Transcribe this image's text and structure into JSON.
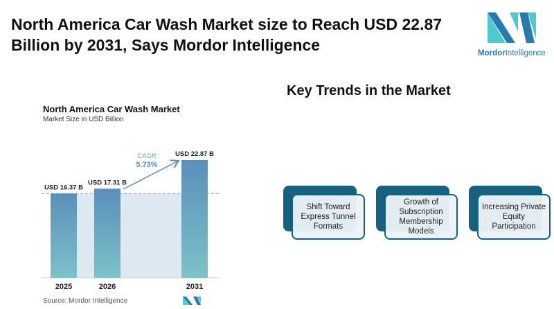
{
  "header": {
    "title": "North America Car Wash Market size to Reach USD 22.87 Billion by 2031, Says Mordor Intelligence"
  },
  "logo": {
    "name": "Mordor Intelligence",
    "word1": "Mordor",
    "word2": "Intelligence"
  },
  "chart_data": {
    "type": "bar",
    "title": "North America Car Wash Market",
    "subtitle": "Market Size in USD Billion",
    "categories": [
      "2025",
      "2026",
      "2031"
    ],
    "values": [
      16.37,
      17.31,
      22.87
    ],
    "data_labels": [
      "USD 16.37 B",
      "USD 17.31 B",
      "USD 22.87 B"
    ],
    "annotation": {
      "label": "CAGR",
      "value": "5.73%"
    },
    "ylim": [
      0,
      22.87
    ],
    "grid": false,
    "colors": {
      "bar_top": "#5b8fba",
      "bar_bottom": "#7dc2c8",
      "band": "#dde8f0",
      "arrow": "#5b8fba"
    },
    "source": "Source:  Mordor Intelligence"
  },
  "trends": {
    "title": "Key Trends in the Market",
    "items": [
      "Shift Toward Express Tunnel Formats",
      "Growth of Subscription Membership Models",
      "Increasing Private Equity Participation"
    ]
  }
}
